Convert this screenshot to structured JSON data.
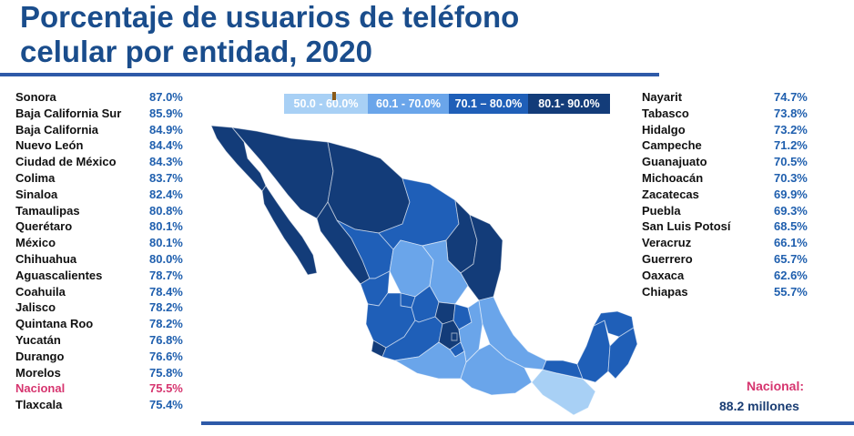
{
  "title_line1": "Porcentaje de usuarios de teléfono",
  "title_line2": "celular por entidad, 2020",
  "legend": [
    {
      "label": "50.0 - 60.0%",
      "color": "#a8d0f5"
    },
    {
      "label": "60.1 - 70.0%",
      "color": "#6aa5ea"
    },
    {
      "label": "70.1 – 80.0%",
      "color": "#1f5fb8"
    },
    {
      "label": "80.1- 90.0%",
      "color": "#133c79"
    }
  ],
  "states_left": [
    {
      "name": "Sonora",
      "value": "87.0%"
    },
    {
      "name": "Baja California Sur",
      "value": "85.9%"
    },
    {
      "name": "Baja California",
      "value": "84.9%"
    },
    {
      "name": "Nuevo León",
      "value": "84.4%"
    },
    {
      "name": "Ciudad de México",
      "value": "84.3%"
    },
    {
      "name": "Colima",
      "value": "83.7%"
    },
    {
      "name": "Sinaloa",
      "value": "82.4%"
    },
    {
      "name": "Tamaulipas",
      "value": "80.8%"
    },
    {
      "name": "Querétaro",
      "value": "80.1%"
    },
    {
      "name": "México",
      "value": "80.1%"
    },
    {
      "name": "Chihuahua",
      "value": "80.0%"
    },
    {
      "name": "Aguascalientes",
      "value": "78.7%"
    },
    {
      "name": "Coahuila",
      "value": "78.4%"
    },
    {
      "name": "Jalisco",
      "value": "78.2%"
    },
    {
      "name": "Quintana Roo",
      "value": "78.2%"
    },
    {
      "name": "Yucatán",
      "value": "76.8%"
    },
    {
      "name": "Durango",
      "value": "76.6%"
    },
    {
      "name": "Morelos",
      "value": "75.8%"
    },
    {
      "name": "Nacional",
      "value": "75.5%",
      "highlight": true
    },
    {
      "name": "Tlaxcala",
      "value": "75.4%"
    }
  ],
  "states_right": [
    {
      "name": "Nayarit",
      "value": "74.7%"
    },
    {
      "name": "Tabasco",
      "value": "73.8%"
    },
    {
      "name": "Hidalgo",
      "value": "73.2%"
    },
    {
      "name": "Campeche",
      "value": "71.2%"
    },
    {
      "name": "Guanajuato",
      "value": "70.5%"
    },
    {
      "name": "Michoacán",
      "value": "70.3%"
    },
    {
      "name": "Zacatecas",
      "value": "69.9%"
    },
    {
      "name": "Puebla",
      "value": "69.3%"
    },
    {
      "name": "San Luis Potosí",
      "value": "68.5%"
    },
    {
      "name": "Veracruz",
      "value": "66.1%"
    },
    {
      "name": "Guerrero",
      "value": "65.7%"
    },
    {
      "name": "Oaxaca",
      "value": "62.6%"
    },
    {
      "name": "Chiapas",
      "value": "55.7%"
    }
  ],
  "nacional_label": "Nacional:",
  "nacional_users": "88.2 millones",
  "colors": {
    "title": "#1a4d8c",
    "rule": "#2e5aa8",
    "value_text": "#1f5fae",
    "highlight": "#d6356f"
  }
}
